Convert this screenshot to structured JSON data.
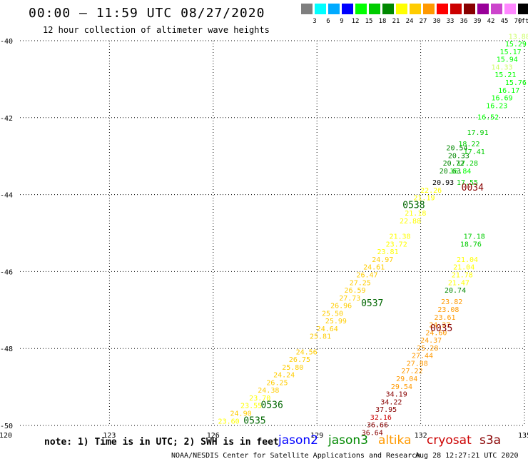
{
  "header": {
    "title": "00:00 – 11:59 UTC 08/27/2020",
    "subtitle": "12 hour collection of altimeter wave heights"
  },
  "legend": {
    "unit": "(ft)",
    "colors": [
      "#7f7f7f",
      "#00ffff",
      "#00aaff",
      "#0000ff",
      "#00ff00",
      "#00cc00",
      "#008800",
      "#ffff00",
      "#ffcc00",
      "#ff9900",
      "#ff0000",
      "#cc0000",
      "#880000",
      "#990099",
      "#cc44cc",
      "#ff88ff",
      "#000000"
    ],
    "labels": [
      "3",
      "6",
      "9",
      "12",
      "15",
      "18",
      "21",
      "24",
      "27",
      "30",
      "33",
      "36",
      "39",
      "42",
      "45",
      "70"
    ]
  },
  "map": {
    "lat_labels": [
      "-40",
      "-42",
      "-44",
      "-46",
      "-48",
      "-50"
    ],
    "lon_labels": [
      "120",
      "123",
      "126",
      "129",
      "132",
      "135"
    ],
    "lon_range": [
      120,
      135
    ],
    "lat_range": [
      -50,
      -40
    ],
    "time_labels": [
      {
        "text": "0535",
        "lon": 127.2,
        "lat": -49.95,
        "color": "#006600"
      },
      {
        "text": "0536",
        "lon": 127.7,
        "lat": -49.55,
        "color": "#006600"
      },
      {
        "text": "0537",
        "lon": 130.6,
        "lat": -46.9,
        "color": "#006600"
      },
      {
        "text": "0538",
        "lon": 131.8,
        "lat": -44.35,
        "color": "#006600"
      },
      {
        "text": "0034",
        "lon": 133.5,
        "lat": -43.9,
        "color": "#880000"
      },
      {
        "text": "0035",
        "lon": 132.6,
        "lat": -47.55,
        "color": "#880000"
      }
    ],
    "readings": [
      {
        "v": "23.60",
        "lon": 126.45,
        "lat": -49.95,
        "color": "#ffff00"
      },
      {
        "v": "24.90",
        "lon": 126.8,
        "lat": -49.75,
        "color": "#ffcc00"
      },
      {
        "v": "23.55",
        "lon": 127.1,
        "lat": -49.55,
        "color": "#ffff00"
      },
      {
        "v": "23.70",
        "lon": 127.35,
        "lat": -49.35,
        "color": "#ffff00"
      },
      {
        "v": "24.38",
        "lon": 127.6,
        "lat": -49.15,
        "color": "#ffcc00"
      },
      {
        "v": "26.25",
        "lon": 127.85,
        "lat": -48.95,
        "color": "#ffcc00"
      },
      {
        "v": "24.24",
        "lon": 128.05,
        "lat": -48.75,
        "color": "#ffcc00"
      },
      {
        "v": "25.80",
        "lon": 128.3,
        "lat": -48.55,
        "color": "#ffcc00"
      },
      {
        "v": "26.75",
        "lon": 128.5,
        "lat": -48.35,
        "color": "#ffcc00"
      },
      {
        "v": "24.56",
        "lon": 128.7,
        "lat": -48.15,
        "color": "#ffcc00"
      },
      {
        "v": "25.81",
        "lon": 129.1,
        "lat": -47.75,
        "color": "#ffcc00"
      },
      {
        "v": "24.64",
        "lon": 129.3,
        "lat": -47.55,
        "color": "#ffcc00"
      },
      {
        "v": "25.99",
        "lon": 129.55,
        "lat": -47.35,
        "color": "#ffcc00"
      },
      {
        "v": "25.50",
        "lon": 129.45,
        "lat": -47.15,
        "color": "#ffcc00"
      },
      {
        "v": "26.96",
        "lon": 129.7,
        "lat": -46.95,
        "color": "#ffcc00"
      },
      {
        "v": "27.73",
        "lon": 129.95,
        "lat": -46.75,
        "color": "#ffcc00"
      },
      {
        "v": "26.59",
        "lon": 130.1,
        "lat": -46.55,
        "color": "#ffcc00"
      },
      {
        "v": "27.25",
        "lon": 130.25,
        "lat": -46.35,
        "color": "#ffcc00"
      },
      {
        "v": "26.47",
        "lon": 130.45,
        "lat": -46.15,
        "color": "#ffcc00"
      },
      {
        "v": "24.61",
        "lon": 130.65,
        "lat": -45.95,
        "color": "#ffcc00"
      },
      {
        "v": "24.97",
        "lon": 130.9,
        "lat": -45.75,
        "color": "#ffcc00"
      },
      {
        "v": "23.81",
        "lon": 131.05,
        "lat": -45.55,
        "color": "#ffff00"
      },
      {
        "v": "23.72",
        "lon": 131.3,
        "lat": -45.35,
        "color": "#ffff00"
      },
      {
        "v": "21.38",
        "lon": 131.4,
        "lat": -45.15,
        "color": "#ffff00"
      },
      {
        "v": "22.88",
        "lon": 131.7,
        "lat": -44.75,
        "color": "#ffff00"
      },
      {
        "v": "21.18",
        "lon": 131.85,
        "lat": -44.55,
        "color": "#ffff00"
      },
      {
        "v": "21.19",
        "lon": 132.1,
        "lat": -44.15,
        "color": "#ffff00"
      },
      {
        "v": "22.26",
        "lon": 132.3,
        "lat": -43.95,
        "color": "#ffff00"
      },
      {
        "v": "20.93",
        "lon": 132.65,
        "lat": -43.75,
        "color": "#000000"
      },
      {
        "v": "17.55",
        "lon": 133.35,
        "lat": -43.75,
        "color": "#00cc00"
      },
      {
        "v": "16.84",
        "lon": 133.15,
        "lat": -43.45,
        "color": "#00ff00"
      },
      {
        "v": "20.63",
        "lon": 132.85,
        "lat": -43.45,
        "color": "#008800"
      },
      {
        "v": "17.28",
        "lon": 133.35,
        "lat": -43.25,
        "color": "#00cc00"
      },
      {
        "v": "20.72",
        "lon": 132.95,
        "lat": -43.25,
        "color": "#008800"
      },
      {
        "v": "20.33",
        "lon": 133.1,
        "lat": -43.05,
        "color": "#008800"
      },
      {
        "v": "20.54",
        "lon": 133.05,
        "lat": -42.85,
        "color": "#008800"
      },
      {
        "v": "17.41",
        "lon": 133.55,
        "lat": -42.95,
        "color": "#00cc00"
      },
      {
        "v": "18.22",
        "lon": 133.4,
        "lat": -42.75,
        "color": "#00cc00"
      },
      {
        "v": "17.91",
        "lon": 133.65,
        "lat": -42.45,
        "color": "#00cc00"
      },
      {
        "v": "16.52",
        "lon": 133.95,
        "lat": -42.05,
        "color": "#00ff00"
      },
      {
        "v": "16.23",
        "lon": 134.2,
        "lat": -41.75,
        "color": "#00ff00"
      },
      {
        "v": "16.69",
        "lon": 134.35,
        "lat": -41.55,
        "color": "#00ff00"
      },
      {
        "v": "16.17",
        "lon": 134.55,
        "lat": -41.35,
        "color": "#00ff00"
      },
      {
        "v": "15.76",
        "lon": 134.75,
        "lat": -41.15,
        "color": "#00ff00"
      },
      {
        "v": "15.21",
        "lon": 134.45,
        "lat": -40.95,
        "color": "#00ff00"
      },
      {
        "v": "14.33",
        "lon": 134.35,
        "lat": -40.75,
        "color": "#ccff66"
      },
      {
        "v": "15.94",
        "lon": 134.5,
        "lat": -40.55,
        "color": "#00ff00"
      },
      {
        "v": "15.17",
        "lon": 134.6,
        "lat": -40.35,
        "color": "#00ff00"
      },
      {
        "v": "15.29",
        "lon": 134.75,
        "lat": -40.15,
        "color": "#00ff00"
      },
      {
        "v": "13.88",
        "lon": 134.85,
        "lat": -39.95,
        "color": "#ccff66"
      },
      {
        "v": "34.19",
        "lon": 131.3,
        "lat": -49.25,
        "color": "#880000"
      },
      {
        "v": "34.22",
        "lon": 131.15,
        "lat": -49.45,
        "color": "#880000"
      },
      {
        "v": "37.95",
        "lon": 131.0,
        "lat": -49.65,
        "color": "#880000"
      },
      {
        "v": "32.16",
        "lon": 130.85,
        "lat": -49.85,
        "color": "#cc0000"
      },
      {
        "v": "36.66",
        "lon": 130.75,
        "lat": -50.05,
        "color": "#880000"
      },
      {
        "v": "36.64",
        "lon": 130.6,
        "lat": -50.25,
        "color": "#880000"
      },
      {
        "v": "29.54",
        "lon": 131.45,
        "lat": -49.05,
        "color": "#ff9900"
      },
      {
        "v": "29.04",
        "lon": 131.6,
        "lat": -48.85,
        "color": "#ff9900"
      },
      {
        "v": "27.22",
        "lon": 131.75,
        "lat": -48.65,
        "color": "#ff9900"
      },
      {
        "v": "27.88",
        "lon": 131.9,
        "lat": -48.45,
        "color": "#ff9900"
      },
      {
        "v": "27.44",
        "lon": 132.05,
        "lat": -48.25,
        "color": "#ff9900"
      },
      {
        "v": "25.28",
        "lon": 132.2,
        "lat": -48.05,
        "color": "#ff9900"
      },
      {
        "v": "24.37",
        "lon": 132.3,
        "lat": -47.85,
        "color": "#ff9900"
      },
      {
        "v": "24.60",
        "lon": 132.45,
        "lat": -47.65,
        "color": "#ff9900"
      },
      {
        "v": "24.27",
        "lon": 132.55,
        "lat": -47.45,
        "color": "#ff9900"
      },
      {
        "v": "23.61",
        "lon": 132.7,
        "lat": -47.25,
        "color": "#ff9900"
      },
      {
        "v": "23.08",
        "lon": 132.8,
        "lat": -47.05,
        "color": "#ff9900"
      },
      {
        "v": "23.82",
        "lon": 132.9,
        "lat": -46.85,
        "color": "#ff9900"
      },
      {
        "v": "20.74",
        "lon": 133.0,
        "lat": -46.55,
        "color": "#008800"
      },
      {
        "v": "21.47",
        "lon": 133.1,
        "lat": -46.35,
        "color": "#ffff00"
      },
      {
        "v": "21.78",
        "lon": 133.2,
        "lat": -46.15,
        "color": "#ffff00"
      },
      {
        "v": "21.04",
        "lon": 133.25,
        "lat": -45.95,
        "color": "#ffff00"
      },
      {
        "v": "21.04",
        "lon": 133.35,
        "lat": -45.75,
        "color": "#ffff00"
      },
      {
        "v": "18.76",
        "lon": 133.45,
        "lat": -45.35,
        "color": "#00cc00"
      },
      {
        "v": "17.18",
        "lon": 133.55,
        "lat": -45.15,
        "color": "#00cc00"
      }
    ]
  },
  "note": "note: 1) Time is in UTC; 2) SWH is in feet",
  "satellites": [
    {
      "name": "jason2",
      "color": "#0000ff"
    },
    {
      "name": "jason3",
      "color": "#008800"
    },
    {
      "name": "altika",
      "color": "#ff9900"
    },
    {
      "name": "cryosat",
      "color": "#cc0000"
    },
    {
      "name": "s3a",
      "color": "#880000"
    }
  ],
  "credit": "NOAA/NESDIS Center for Satellite Applications and Research",
  "timestamp": "Aug 28 12:27:21 UTC 2020"
}
